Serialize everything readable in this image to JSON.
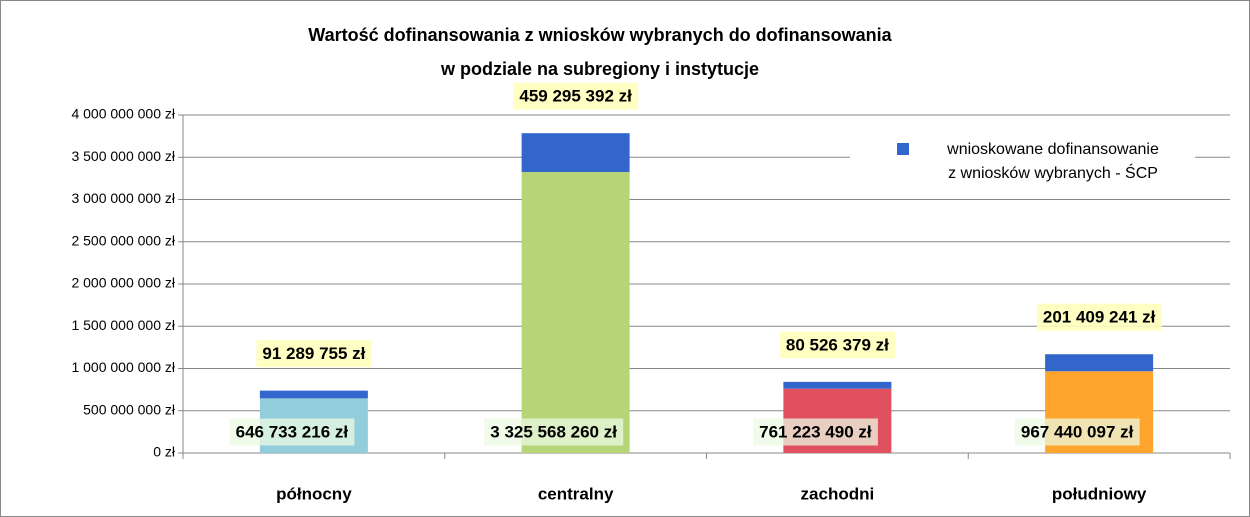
{
  "chart_data": {
    "type": "stacked-bar",
    "title": "Wartość dofinansowania z wniosków wybranych do dofinansowania\nw podziale na subregiony i instytucje",
    "categories": [
      "północny",
      "centralny",
      "zachodni",
      "południowy"
    ],
    "series": [
      {
        "colors": [
          "#92cddc",
          "#b7d477",
          "#e0505f",
          "#ffa42c"
        ],
        "values": [
          646733216,
          3325568260,
          761223490,
          967440097
        ],
        "value_labels": [
          "646 733 216 zł",
          "3 325 568 260 zł",
          "761 223 490 zł",
          "967 440 097 zł"
        ]
      },
      {
        "name": "wnioskowane dofinansowanie\nz wniosków wybranych -  ŚCP",
        "color": "#3366cc",
        "values": [
          91289755,
          459295392,
          80526379,
          201409241
        ],
        "value_labels": [
          "91 289 755 zł",
          "459 295 392 zł",
          "80 526 379 zł",
          "201 409 241 zł"
        ]
      }
    ],
    "ylim": [
      0,
      4000000000
    ],
    "yticks": [
      {
        "value": 0,
        "label": "0 zł"
      },
      {
        "value": 500000000,
        "label": "500 000 000 zł"
      },
      {
        "value": 1000000000,
        "label": "1 000 000 000 zł"
      },
      {
        "value": 1500000000,
        "label": "1 500 000 000 zł"
      },
      {
        "value": 2000000000,
        "label": "2 000 000 000 zł"
      },
      {
        "value": 2500000000,
        "label": "2 500 000 000 zł"
      },
      {
        "value": 3000000000,
        "label": "3 000 000 000 zł"
      },
      {
        "value": 3500000000,
        "label": "3 500 000 000 zł"
      },
      {
        "value": 4000000000,
        "label": "4 000 000 000 zł"
      }
    ],
    "grid": true,
    "legend": "top-right"
  }
}
